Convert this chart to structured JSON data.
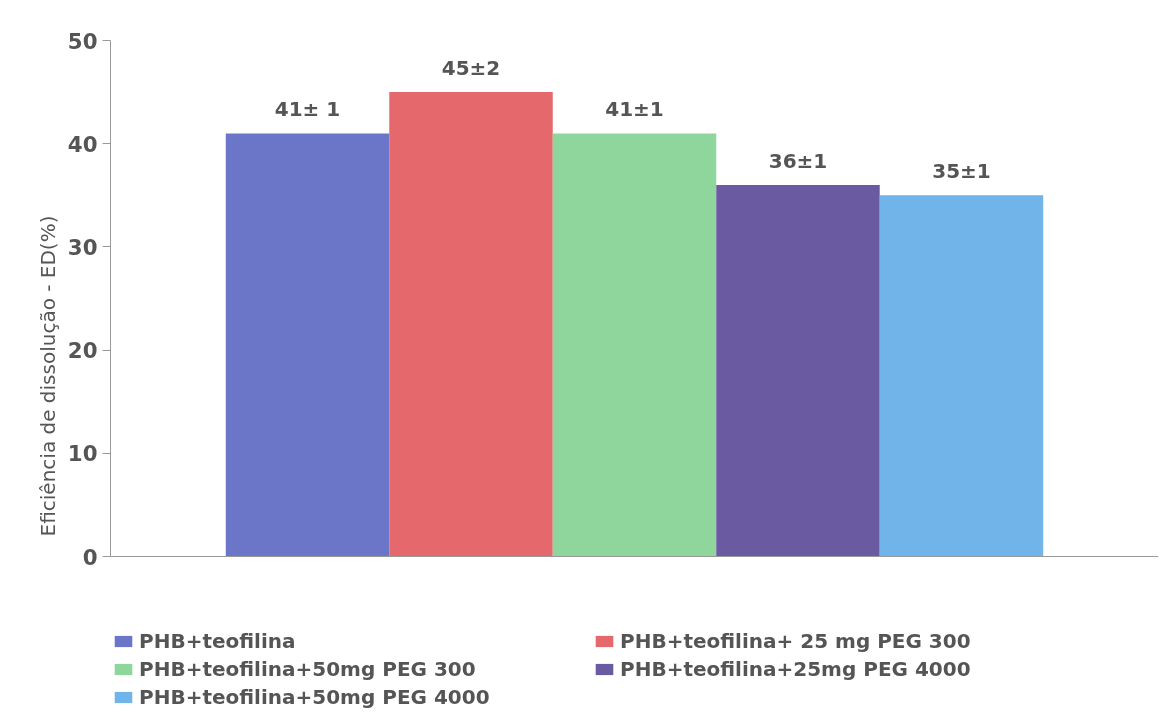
{
  "chart_data": {
    "type": "bar",
    "ylabel": "Eficiência de dissolução - ED(%)",
    "categories": [
      null
    ],
    "series": [
      {
        "name": "PHB+teofilina",
        "color": "#6b76c8",
        "values": [
          41
        ],
        "value_labels": [
          "41± 1"
        ]
      },
      {
        "name": "PHB+teofilina+ 25 mg PEG 300",
        "color": "#e4686c",
        "values": [
          45
        ],
        "value_labels": [
          "45±2"
        ]
      },
      {
        "name": "PHB+teofilina+50mg PEG 300",
        "color": "#8ed69b",
        "values": [
          41
        ],
        "value_labels": [
          "41±1"
        ]
      },
      {
        "name": "PHB+teofilina+25mg PEG 4000",
        "color": "#6a5aa2",
        "values": [
          36
        ],
        "value_labels": [
          "36±1"
        ]
      },
      {
        "name": "PHB+teofilina+50mg PEG 4000",
        "color": "#71b4ea",
        "values": [
          35
        ],
        "value_labels": [
          "35±1"
        ]
      }
    ],
    "ylim": [
      0,
      50
    ],
    "yticks": [
      0,
      10,
      20,
      30,
      40,
      50
    ],
    "grid": false,
    "legend": "bottom"
  }
}
